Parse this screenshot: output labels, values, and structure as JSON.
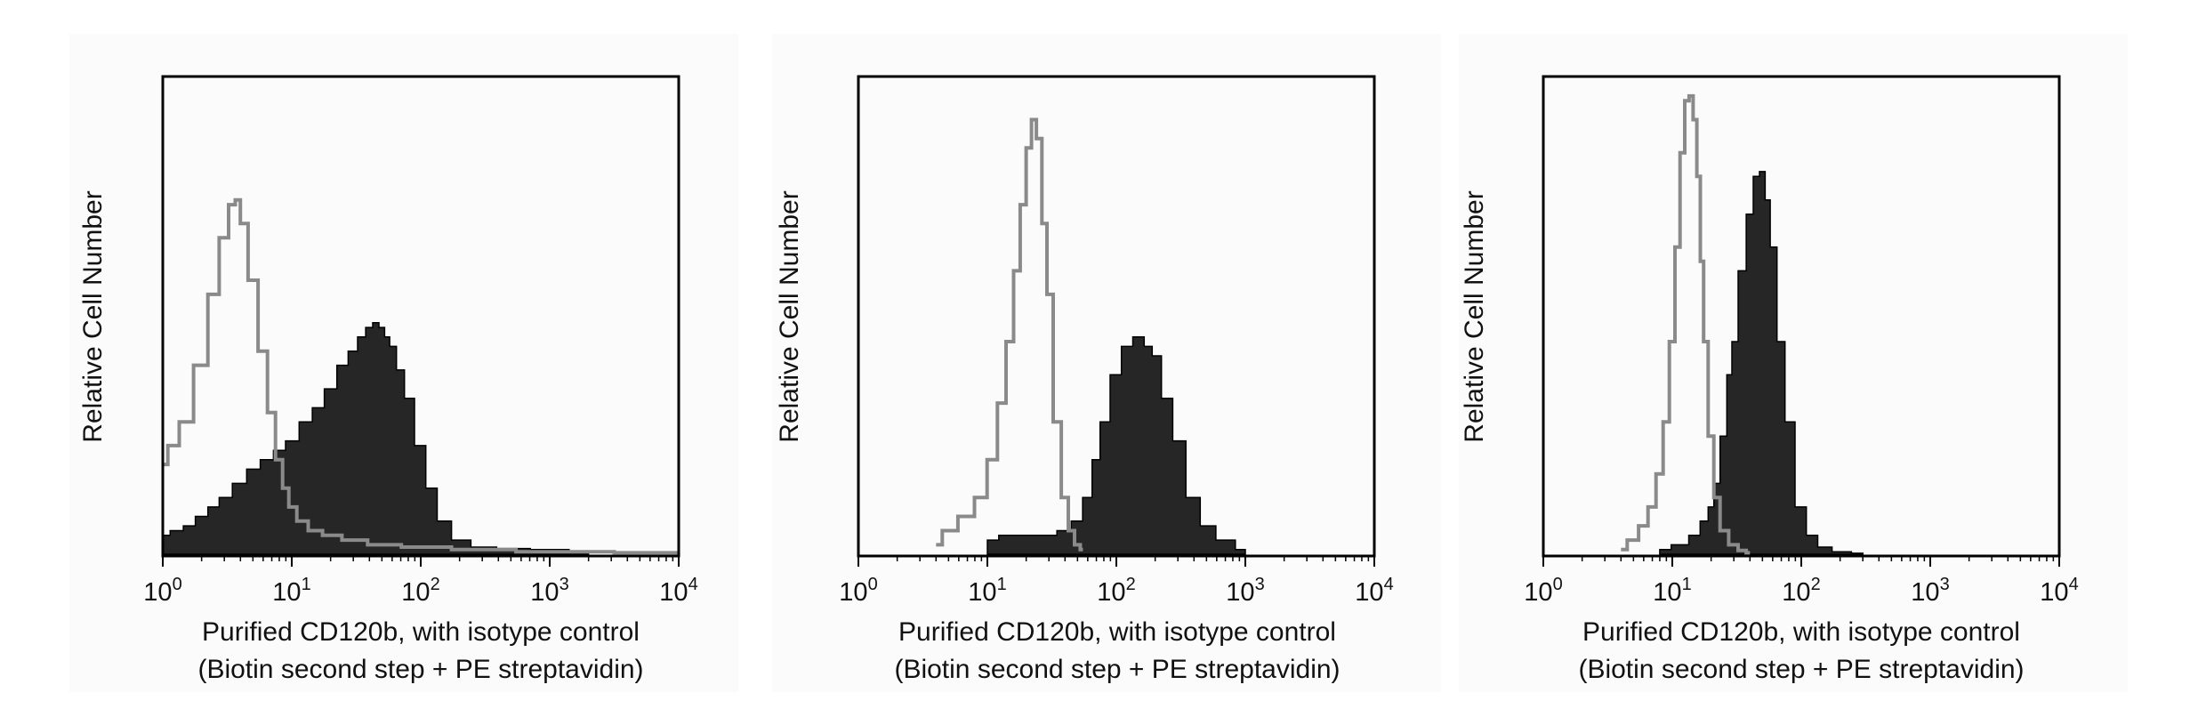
{
  "colors": {
    "page_background": "#ffffff",
    "panel_background": "#fbfbfb",
    "frame": "#000000",
    "stained_fill": "#262626",
    "isotype_line": "#8a8a8a"
  },
  "chart_data": [
    {
      "type": "area",
      "ylabel": "Relative Cell Number",
      "xlabel_line1": "Purified CD120b, with isotype control",
      "xlabel_line2": "(Biotin second step + PE streptavidin)",
      "x_scale": "log",
      "xlim": [
        1,
        10000
      ],
      "ylim": [
        0,
        1
      ],
      "x_ticks": [
        1,
        10,
        100,
        1000,
        10000
      ],
      "grid": false,
      "legend": "none",
      "series": [
        {
          "role": "stained",
          "style": "filled",
          "x": [
            1,
            1.3,
            1.6,
            2,
            2.5,
            3,
            4,
            5,
            6.5,
            8,
            10,
            13,
            16,
            20,
            25,
            30,
            35,
            40,
            45,
            50,
            55,
            60,
            70,
            80,
            100,
            120,
            150,
            200,
            300,
            500,
            1000,
            2000
          ],
          "y": [
            0.04,
            0.05,
            0.06,
            0.08,
            0.1,
            0.12,
            0.15,
            0.18,
            0.2,
            0.22,
            0.24,
            0.28,
            0.31,
            0.35,
            0.4,
            0.43,
            0.46,
            0.48,
            0.49,
            0.48,
            0.46,
            0.44,
            0.39,
            0.33,
            0.23,
            0.14,
            0.07,
            0.03,
            0.015,
            0.012,
            0.01,
            0.005
          ]
        },
        {
          "role": "isotype",
          "style": "outline",
          "x": [
            1,
            1.2,
            1.5,
            2,
            2.5,
            3,
            3.5,
            3.8,
            4.2,
            5,
            6,
            7,
            8,
            9,
            10,
            12,
            15,
            20,
            30,
            50,
            100,
            300,
            1000,
            10000
          ],
          "y": [
            0.19,
            0.23,
            0.28,
            0.4,
            0.55,
            0.67,
            0.74,
            0.75,
            0.7,
            0.58,
            0.43,
            0.3,
            0.2,
            0.14,
            0.1,
            0.07,
            0.05,
            0.04,
            0.03,
            0.02,
            0.015,
            0.01,
            0.005,
            0.003
          ]
        }
      ]
    },
    {
      "type": "area",
      "ylabel": "Relative Cell Number",
      "xlabel_line1": "Purified CD120b, with isotype control",
      "xlabel_line2": "(Biotin second step + PE streptavidin)",
      "x_scale": "log",
      "xlim": [
        1,
        10000
      ],
      "ylim": [
        0,
        1
      ],
      "x_ticks": [
        1,
        10,
        100,
        1000,
        10000
      ],
      "grid": false,
      "legend": "none",
      "series": [
        {
          "role": "stained",
          "style": "filled",
          "x": [
            10,
            15,
            20,
            30,
            40,
            50,
            60,
            70,
            80,
            100,
            120,
            150,
            180,
            200,
            250,
            300,
            400,
            500,
            700,
            1000
          ],
          "y": [
            0.03,
            0.04,
            0.04,
            0.04,
            0.05,
            0.07,
            0.12,
            0.2,
            0.28,
            0.38,
            0.44,
            0.46,
            0.44,
            0.42,
            0.33,
            0.24,
            0.12,
            0.06,
            0.03,
            0.01
          ]
        },
        {
          "role": "isotype",
          "style": "outline",
          "x": [
            4,
            5,
            7,
            9,
            11,
            13,
            15,
            17,
            19,
            21,
            23,
            25,
            28,
            30,
            35,
            40,
            45,
            50,
            55
          ],
          "y": [
            0.02,
            0.05,
            0.08,
            0.12,
            0.2,
            0.32,
            0.45,
            0.6,
            0.74,
            0.86,
            0.92,
            0.88,
            0.7,
            0.55,
            0.28,
            0.12,
            0.05,
            0.02,
            0.01
          ]
        }
      ]
    },
    {
      "type": "area",
      "ylabel": "Relative Cell Number",
      "xlabel_line1": "Purified CD120b, with isotype control",
      "xlabel_line2": "(Biotin second step + PE streptavidin)",
      "x_scale": "log",
      "xlim": [
        1,
        10000
      ],
      "ylim": [
        0,
        1
      ],
      "x_ticks": [
        1,
        10,
        100,
        1000,
        10000
      ],
      "grid": false,
      "legend": "none",
      "series": [
        {
          "role": "stained",
          "style": "filled",
          "x": [
            8,
            12,
            15,
            18,
            20,
            22,
            25,
            28,
            30,
            35,
            40,
            45,
            50,
            55,
            60,
            70,
            80,
            100,
            120,
            150,
            200,
            300
          ],
          "y": [
            0.01,
            0.02,
            0.04,
            0.07,
            0.1,
            0.15,
            0.25,
            0.38,
            0.45,
            0.6,
            0.72,
            0.8,
            0.81,
            0.75,
            0.65,
            0.45,
            0.28,
            0.1,
            0.04,
            0.015,
            0.005,
            0.002
          ]
        },
        {
          "role": "isotype",
          "style": "outline",
          "x": [
            4,
            5,
            6,
            7,
            8,
            9,
            10,
            11,
            12,
            13,
            14,
            15,
            16,
            17,
            18,
            20,
            22,
            25,
            30,
            35,
            40
          ],
          "y": [
            0.01,
            0.03,
            0.06,
            0.1,
            0.17,
            0.28,
            0.45,
            0.65,
            0.85,
            0.96,
            0.97,
            0.92,
            0.8,
            0.62,
            0.45,
            0.25,
            0.12,
            0.05,
            0.02,
            0.008,
            0.003
          ]
        }
      ]
    }
  ]
}
